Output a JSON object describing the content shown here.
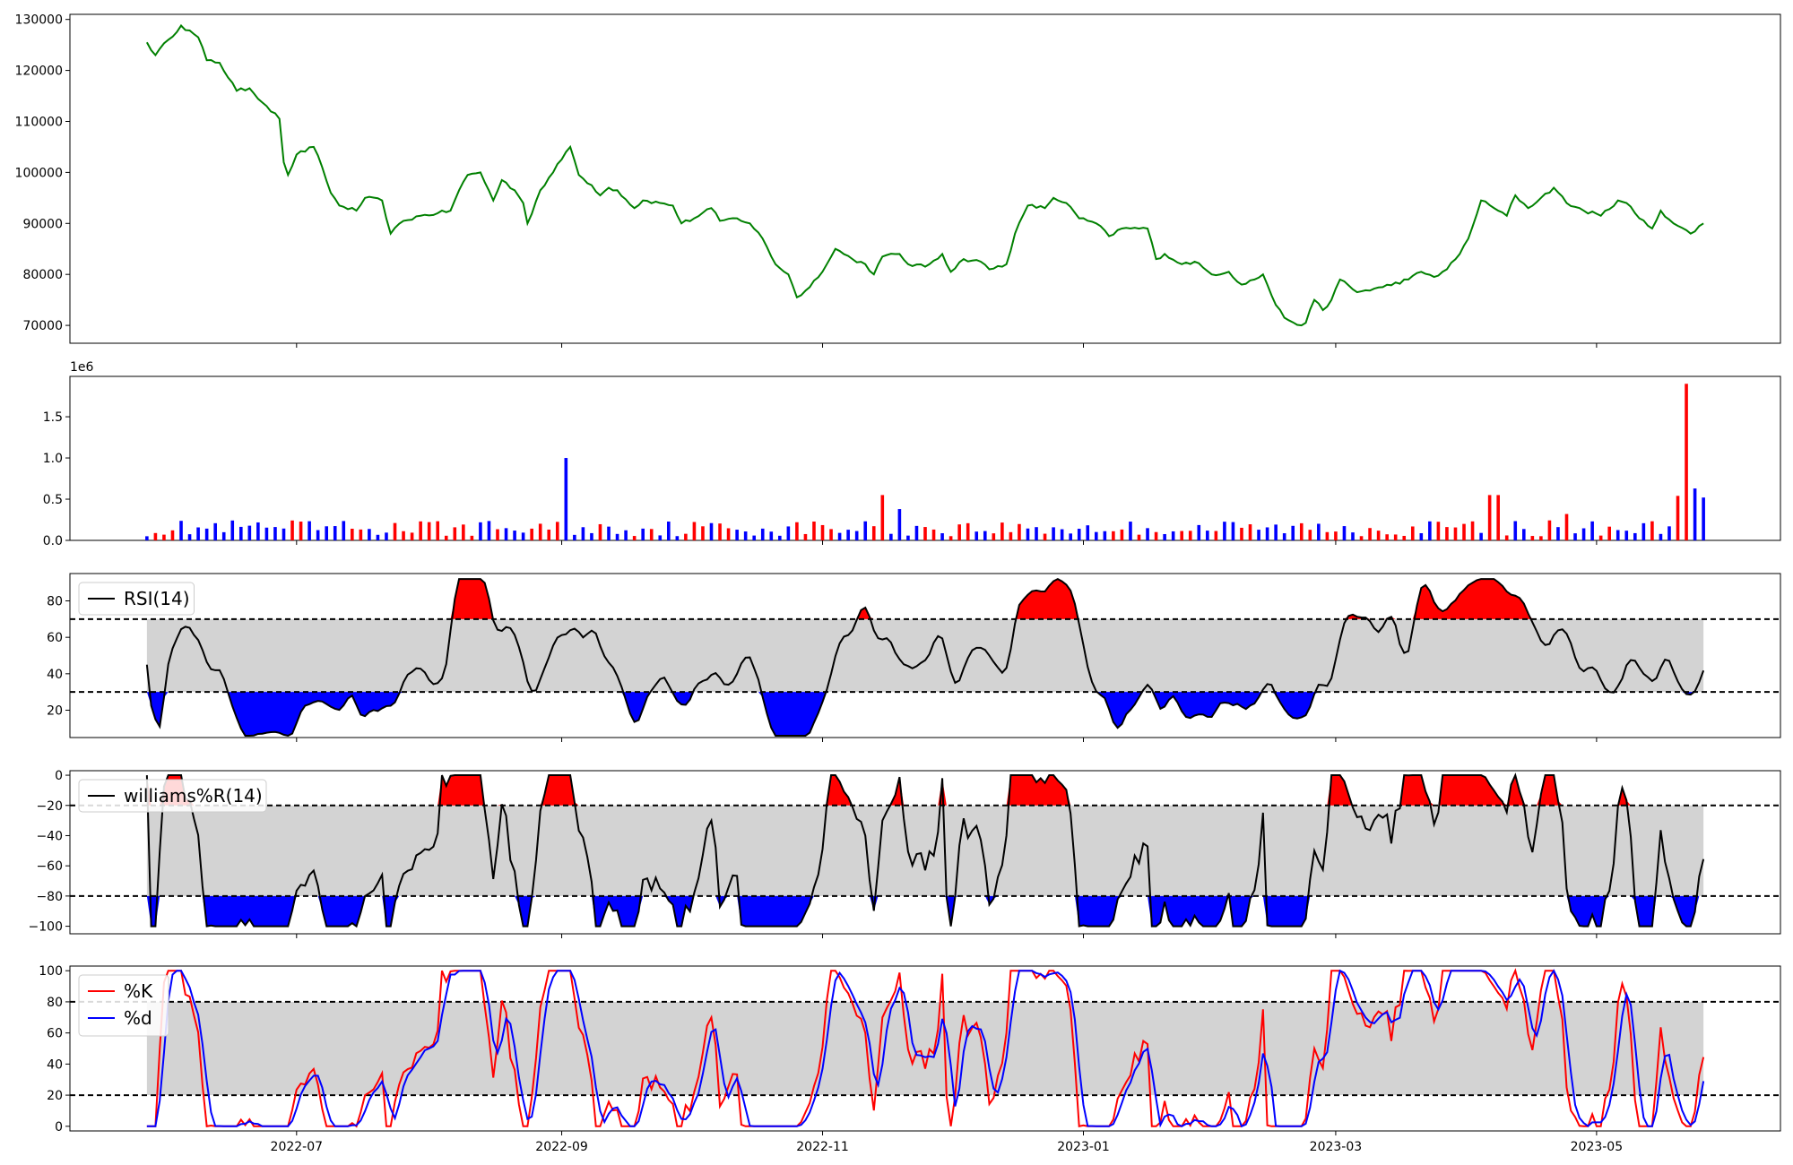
{
  "x_ticks": [
    "2022-07",
    "2022-09",
    "2022-11",
    "2023-01",
    "2023-03",
    "2023-05"
  ],
  "chart_data": [
    {
      "type": "line",
      "name": "price",
      "color": "#008000",
      "ylim": [
        66500,
        131000
      ],
      "yticks": [
        70000,
        80000,
        90000,
        100000,
        110000,
        120000,
        130000
      ],
      "x_range": [
        "2022-05-27",
        "2023-05-26"
      ],
      "anchors": [
        [
          "2022-05-27",
          125500
        ],
        [
          "2022-05-29",
          123000
        ],
        [
          "2022-06-01",
          126000
        ],
        [
          "2022-06-04",
          128800
        ],
        [
          "2022-06-08",
          126500
        ],
        [
          "2022-06-10",
          122000
        ],
        [
          "2022-06-13",
          121500
        ],
        [
          "2022-06-17",
          116000
        ],
        [
          "2022-06-20",
          116500
        ],
        [
          "2022-06-24",
          113000
        ],
        [
          "2022-06-27",
          110500
        ],
        [
          "2022-06-28",
          102000
        ],
        [
          "2022-06-29",
          99500
        ],
        [
          "2022-07-01",
          103500
        ],
        [
          "2022-07-05",
          105000
        ],
        [
          "2022-07-07",
          101000
        ],
        [
          "2022-07-09",
          96000
        ],
        [
          "2022-07-11",
          93500
        ],
        [
          "2022-07-15",
          92500
        ],
        [
          "2022-07-17",
          95000
        ],
        [
          "2022-07-21",
          94500
        ],
        [
          "2022-07-23",
          88000
        ],
        [
          "2022-07-26",
          90500
        ],
        [
          "2022-07-30",
          91500
        ],
        [
          "2022-08-03",
          92000
        ],
        [
          "2022-08-06",
          92500
        ],
        [
          "2022-08-08",
          96500
        ],
        [
          "2022-08-10",
          99500
        ],
        [
          "2022-08-13",
          100000
        ],
        [
          "2022-08-16",
          94500
        ],
        [
          "2022-08-18",
          98500
        ],
        [
          "2022-08-21",
          96500
        ],
        [
          "2022-08-23",
          94000
        ],
        [
          "2022-08-24",
          90000
        ],
        [
          "2022-08-27",
          96500
        ],
        [
          "2022-08-30",
          100000
        ],
        [
          "2022-09-02",
          104000
        ],
        [
          "2022-09-03",
          105000
        ],
        [
          "2022-09-05",
          99500
        ],
        [
          "2022-09-08",
          97500
        ],
        [
          "2022-09-10",
          95500
        ],
        [
          "2022-09-12",
          97000
        ],
        [
          "2022-09-14",
          96500
        ],
        [
          "2022-09-18",
          93000
        ],
        [
          "2022-09-20",
          94500
        ],
        [
          "2022-09-24",
          94000
        ],
        [
          "2022-09-27",
          93500
        ],
        [
          "2022-09-29",
          90000
        ],
        [
          "2022-10-02",
          91000
        ],
        [
          "2022-10-06",
          93000
        ],
        [
          "2022-10-08",
          90500
        ],
        [
          "2022-10-12",
          91000
        ],
        [
          "2022-10-15",
          90000
        ],
        [
          "2022-10-18",
          87000
        ],
        [
          "2022-10-21",
          82000
        ],
        [
          "2022-10-24",
          80000
        ],
        [
          "2022-10-26",
          75500
        ],
        [
          "2022-10-29",
          77500
        ],
        [
          "2022-11-02",
          82000
        ],
        [
          "2022-11-04",
          85000
        ],
        [
          "2022-11-08",
          83000
        ],
        [
          "2022-11-11",
          82000
        ],
        [
          "2022-11-13",
          80000
        ],
        [
          "2022-11-15",
          83500
        ],
        [
          "2022-11-19",
          84000
        ],
        [
          "2022-11-21",
          82000
        ],
        [
          "2022-11-25",
          81500
        ],
        [
          "2022-11-29",
          84000
        ],
        [
          "2022-12-01",
          80500
        ],
        [
          "2022-12-04",
          83000
        ],
        [
          "2022-12-08",
          82500
        ],
        [
          "2022-12-10",
          81000
        ],
        [
          "2022-12-14",
          82000
        ],
        [
          "2022-12-16",
          88000
        ],
        [
          "2022-12-19",
          93500
        ],
        [
          "2022-12-23",
          93000
        ],
        [
          "2022-12-25",
          95000
        ],
        [
          "2022-12-28",
          94000
        ],
        [
          "2022-12-31",
          91000
        ],
        [
          "2023-01-04",
          90000
        ],
        [
          "2023-01-07",
          87500
        ],
        [
          "2023-01-10",
          89000
        ],
        [
          "2023-01-16",
          89000
        ],
        [
          "2023-01-18",
          83000
        ],
        [
          "2023-01-20",
          84000
        ],
        [
          "2023-01-24",
          82000
        ],
        [
          "2023-01-27",
          82500
        ],
        [
          "2023-01-31",
          80000
        ],
        [
          "2023-02-04",
          80500
        ],
        [
          "2023-02-07",
          78000
        ],
        [
          "2023-02-10",
          79000
        ],
        [
          "2023-02-12",
          80000
        ],
        [
          "2023-02-15",
          74000
        ],
        [
          "2023-02-17",
          71500
        ],
        [
          "2023-02-21",
          70000
        ],
        [
          "2023-02-22",
          70500
        ],
        [
          "2023-02-24",
          75000
        ],
        [
          "2023-02-26",
          73000
        ],
        [
          "2023-02-28",
          75000
        ],
        [
          "2023-03-02",
          79000
        ],
        [
          "2023-03-06",
          76500
        ],
        [
          "2023-03-12",
          77500
        ],
        [
          "2023-03-18",
          79000
        ],
        [
          "2023-03-21",
          80500
        ],
        [
          "2023-03-24",
          79500
        ],
        [
          "2023-03-27",
          81000
        ],
        [
          "2023-03-30",
          84000
        ],
        [
          "2023-04-01",
          87000
        ],
        [
          "2023-04-04",
          94500
        ],
        [
          "2023-04-08",
          92500
        ],
        [
          "2023-04-10",
          91500
        ],
        [
          "2023-04-12",
          95500
        ],
        [
          "2023-04-15",
          93000
        ],
        [
          "2023-04-18",
          95000
        ],
        [
          "2023-04-21",
          97000
        ],
        [
          "2023-04-24",
          94000
        ],
        [
          "2023-04-28",
          92500
        ],
        [
          "2023-05-02",
          91500
        ],
        [
          "2023-05-06",
          94500
        ],
        [
          "2023-05-08",
          94000
        ],
        [
          "2023-05-11",
          91000
        ],
        [
          "2023-05-14",
          89000
        ],
        [
          "2023-05-16",
          92500
        ],
        [
          "2023-05-19",
          90000
        ],
        [
          "2023-05-23",
          88000
        ],
        [
          "2023-05-26",
          90000
        ]
      ]
    },
    {
      "type": "bar",
      "name": "volume",
      "ylim": [
        0,
        1990000
      ],
      "yticks": [
        0,
        500000,
        1000000,
        1500000
      ],
      "ytick_labels": [
        "0.0",
        "0.5",
        "1.0",
        "1.5"
      ],
      "offset_text": "1e6",
      "colors": {
        "up": "#ff0000",
        "down": "#0000ff"
      },
      "baseline": 140000,
      "spikes": [
        [
          "2022-09-03",
          1000000,
          "down"
        ],
        [
          "2022-11-16",
          550000,
          "up"
        ],
        [
          "2022-11-20",
          380000,
          "down"
        ],
        [
          "2023-04-06",
          550000,
          "up"
        ],
        [
          "2023-04-09",
          550000,
          "up"
        ],
        [
          "2023-04-25",
          320000,
          "up"
        ],
        [
          "2023-05-20",
          540000,
          "up"
        ],
        [
          "2023-05-23",
          1900000,
          "up"
        ],
        [
          "2023-05-24",
          630000,
          "down"
        ],
        [
          "2023-05-25",
          650000,
          "down"
        ],
        [
          "2023-05-26",
          520000,
          "down"
        ]
      ]
    },
    {
      "type": "area",
      "name": "RSI(14)",
      "legend": "RSI(14)",
      "ylim": [
        5,
        95
      ],
      "yticks": [
        20,
        40,
        60,
        80
      ],
      "thresholds": [
        30,
        70
      ],
      "colors": {
        "line": "#000000",
        "band": "#d3d3d3",
        "over": "#ff0000",
        "under": "#0000ff"
      }
    },
    {
      "type": "area",
      "name": "williams%R(14)",
      "legend": "williams%R(14)",
      "ylim": [
        -105,
        3
      ],
      "yticks": [
        0,
        -20,
        -40,
        -60,
        -80,
        -100
      ],
      "ytick_labels": [
        "0",
        "−20",
        "−40",
        "−60",
        "−80",
        "−100"
      ],
      "thresholds": [
        -80,
        -20
      ],
      "colors": {
        "line": "#000000",
        "band": "#d3d3d3",
        "over": "#ff0000",
        "under": "#0000ff"
      }
    },
    {
      "type": "line",
      "name": "stochastic",
      "ylim": [
        -3,
        103
      ],
      "yticks": [
        0,
        20,
        40,
        60,
        80,
        100
      ],
      "thresholds": [
        20,
        80
      ],
      "series": [
        {
          "name": "%K",
          "color": "#ff0000"
        },
        {
          "name": "%d",
          "color": "#0000ff"
        }
      ],
      "band_color": "#d3d3d3"
    }
  ]
}
